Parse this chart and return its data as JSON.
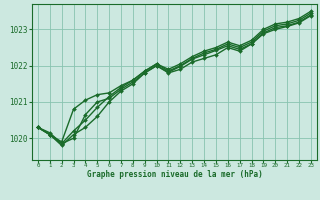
{
  "title": "",
  "xlabel": "Graphe pression niveau de la mer (hPa)",
  "xlim": [
    -0.5,
    23.5
  ],
  "ylim": [
    1019.4,
    1023.7
  ],
  "yticks": [
    1020,
    1021,
    1022,
    1023
  ],
  "xticks": [
    0,
    1,
    2,
    3,
    4,
    5,
    6,
    7,
    8,
    9,
    10,
    11,
    12,
    13,
    14,
    15,
    16,
    17,
    18,
    19,
    20,
    21,
    22,
    23
  ],
  "bg_color": "#cce8e0",
  "grid_color": "#88c4b0",
  "line_color": "#1a6b2a",
  "line_width": 1.0,
  "marker": "D",
  "marker_size": 2.0,
  "series": [
    [
      1020.3,
      1020.1,
      1019.8,
      1020.1,
      1020.3,
      1020.6,
      1021.0,
      1021.3,
      1021.5,
      1021.8,
      1022.0,
      1021.8,
      1021.9,
      1022.1,
      1022.2,
      1022.3,
      1022.5,
      1022.4,
      1022.6,
      1022.9,
      1023.05,
      1023.1,
      1023.2,
      1023.4
    ],
    [
      1020.3,
      1020.15,
      1019.85,
      1020.2,
      1020.5,
      1020.85,
      1021.15,
      1021.4,
      1021.6,
      1021.85,
      1022.05,
      1021.85,
      1022.0,
      1022.2,
      1022.35,
      1022.45,
      1022.6,
      1022.5,
      1022.65,
      1022.95,
      1023.1,
      1023.15,
      1023.25,
      1023.45
    ],
    [
      1020.3,
      1020.1,
      1019.9,
      1020.8,
      1021.05,
      1021.2,
      1021.25,
      1021.45,
      1021.6,
      1021.85,
      1022.05,
      1021.9,
      1022.05,
      1022.25,
      1022.4,
      1022.5,
      1022.65,
      1022.55,
      1022.7,
      1023.0,
      1023.15,
      1023.2,
      1023.3,
      1023.5
    ],
    [
      1020.3,
      1020.1,
      1019.85,
      1020.0,
      1020.65,
      1021.0,
      1021.1,
      1021.35,
      1021.55,
      1021.8,
      1022.0,
      1021.82,
      1021.98,
      1022.18,
      1022.3,
      1022.42,
      1022.55,
      1022.45,
      1022.6,
      1022.88,
      1023.0,
      1023.08,
      1023.18,
      1023.38
    ]
  ]
}
